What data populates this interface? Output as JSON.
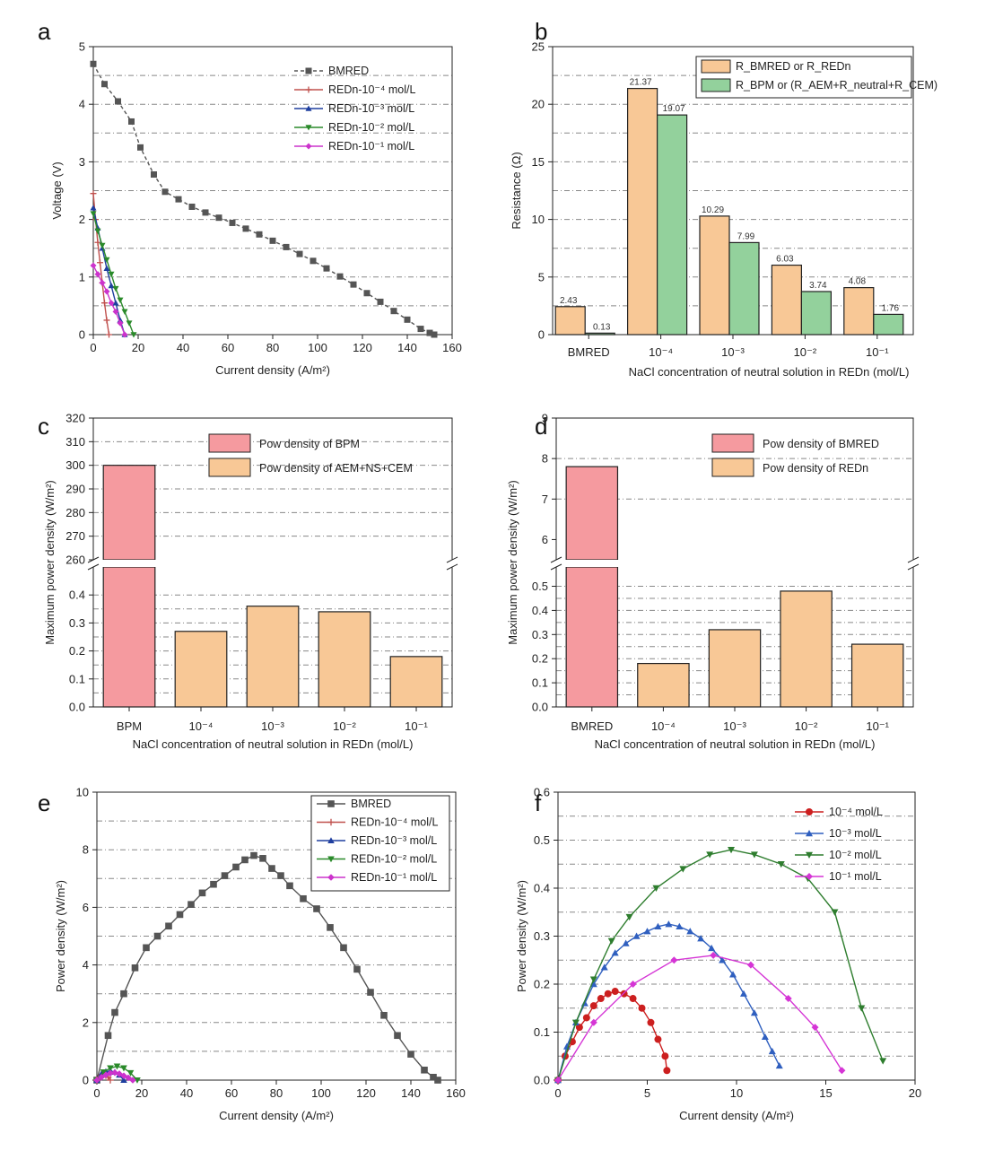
{
  "panels": {
    "a": {
      "label": "a"
    },
    "b": {
      "label": "b"
    },
    "c": {
      "label": "c"
    },
    "d": {
      "label": "d"
    },
    "e": {
      "label": "e"
    },
    "f": {
      "label": "f"
    }
  },
  "colors": {
    "bmred": "#555555",
    "redn4": "#c0504d",
    "redn3": "#1f3f9f",
    "redn2": "#2a8a2a",
    "redn1": "#cc33cc",
    "orange": "#f8c896",
    "green": "#93d19c",
    "pink": "#f59a9f",
    "red_text": "#d03c3c",
    "f_red": "#cc1f1f",
    "f_blue": "#2f5fbf",
    "f_green": "#2e7d2e",
    "f_magenta": "#d535d5"
  },
  "chart_data": [
    {
      "id": "a",
      "type": "line",
      "xlabel": "Current density (A/m²)",
      "ylabel": "Voltage (V)",
      "xlim": [
        0,
        160
      ],
      "ylim": [
        0,
        5
      ],
      "xticks": [
        "0",
        "20",
        "40",
        "60",
        "80",
        "100",
        "120",
        "140",
        "160"
      ],
      "yticks": [
        "0",
        "1",
        "2",
        "3",
        "4",
        "5"
      ],
      "series": [
        {
          "name": "BMRED",
          "color": "#555555",
          "marker": "square",
          "dashed": true,
          "x": [
            0,
            5,
            11,
            17,
            21,
            27,
            32,
            38,
            44,
            50,
            56,
            62,
            68,
            74,
            80,
            86,
            92,
            98,
            104,
            110,
            116,
            122,
            128,
            134,
            140,
            146,
            150,
            152
          ],
          "y": [
            4.7,
            4.35,
            4.05,
            3.7,
            3.25,
            2.78,
            2.48,
            2.35,
            2.22,
            2.12,
            2.03,
            1.94,
            1.84,
            1.74,
            1.63,
            1.52,
            1.4,
            1.28,
            1.15,
            1.01,
            0.87,
            0.72,
            0.57,
            0.41,
            0.26,
            0.1,
            0.03,
            0.0
          ]
        },
        {
          "name": "REDn-10⁻⁴ mol/L",
          "color": "#c0504d",
          "marker": "plus",
          "x": [
            0,
            1,
            2,
            3,
            4,
            5,
            6,
            7
          ],
          "y": [
            2.45,
            2.0,
            1.6,
            1.25,
            0.9,
            0.55,
            0.25,
            0.0
          ]
        },
        {
          "name": "REDn-10⁻³ mol/L",
          "color": "#1f3f9f",
          "marker": "triangle",
          "x": [
            0,
            2,
            4,
            6,
            8,
            10,
            12,
            14
          ],
          "y": [
            2.2,
            1.85,
            1.5,
            1.15,
            0.85,
            0.55,
            0.25,
            0.0
          ]
        },
        {
          "name": "REDn-10⁻² mol/L",
          "color": "#2a8a2a",
          "marker": "tridown",
          "x": [
            0,
            2,
            4,
            6,
            8,
            10,
            12,
            14,
            16,
            18
          ],
          "y": [
            2.1,
            1.8,
            1.55,
            1.3,
            1.05,
            0.8,
            0.6,
            0.4,
            0.2,
            0.0
          ]
        },
        {
          "name": "REDn-10⁻¹ mol/L",
          "color": "#cc33cc",
          "marker": "diamond",
          "x": [
            0,
            2,
            4,
            6,
            8,
            10,
            12,
            14
          ],
          "y": [
            1.2,
            1.05,
            0.9,
            0.75,
            0.55,
            0.4,
            0.2,
            0.0
          ]
        }
      ]
    },
    {
      "id": "b",
      "type": "bar",
      "xlabel": "NaCl concentration of neutral solution in REDn (mol/L)",
      "ylabel": "Resistance (Ω)",
      "ylim": [
        0,
        25
      ],
      "yticks": [
        "0",
        "5",
        "10",
        "15",
        "20",
        "25"
      ],
      "categories": [
        "BMRED",
        "10⁻⁴",
        "10⁻³",
        "10⁻²",
        "10⁻¹"
      ],
      "series": [
        {
          "name": "R_BMRED or R_REDn",
          "color": "#f8c896",
          "values": [
            2.43,
            21.37,
            10.29,
            6.03,
            4.08
          ],
          "labels": [
            "2.43",
            "21.37",
            "10.29",
            "6.03",
            "4.08"
          ]
        },
        {
          "name": "R_BPM or (R_AEM+R_neutral+R_CEM)",
          "color": "#93d19c",
          "values": [
            0.13,
            19.07,
            7.99,
            3.74,
            1.76
          ],
          "labels": [
            "0.13",
            "19.07",
            "7.99",
            "3.74",
            "1.76"
          ]
        }
      ],
      "legend": [
        {
          "main": "R",
          "sub": "BMRED",
          "mid": " or R",
          "sub2": "REDn",
          "tail": ""
        },
        {
          "main": "R",
          "sub": "BPM",
          "mid": " or (R",
          "sub2": "AEM",
          "tail": "+R"
        }
      ]
    },
    {
      "id": "c",
      "type": "bar",
      "xlabel": "NaCl concentration of neutral solution in REDn (mol/L)",
      "ylabel": "Maximum power density (W/m²)",
      "upper_ylim": [
        260,
        320
      ],
      "upper_yticks": [
        "260",
        "270",
        "280",
        "290",
        "300",
        "310",
        "320"
      ],
      "lower_ylim": [
        0,
        0.5
      ],
      "lower_yticks": [
        "0.0",
        "0.1",
        "0.2",
        "0.3",
        "0.4"
      ],
      "categories": [
        "BPM",
        "10⁻⁴",
        "10⁻³",
        "10⁻²",
        "10⁻¹"
      ],
      "values": [
        300,
        0.27,
        0.36,
        0.34,
        0.18
      ],
      "series_names": [
        "Pow density of BPM",
        "Pow density of AEM+NS+CEM"
      ]
    },
    {
      "id": "d",
      "type": "bar",
      "xlabel": "NaCl concentration of neutral solution in REDn (mol/L)",
      "ylabel": "Maximum power density (W/m²)",
      "upper_ylim": [
        5.5,
        9
      ],
      "upper_yticks": [
        "6",
        "7",
        "8",
        "9"
      ],
      "lower_ylim": [
        0,
        0.58
      ],
      "lower_yticks": [
        "0.0",
        "0.1",
        "0.2",
        "0.3",
        "0.4",
        "0.5"
      ],
      "categories": [
        "BMRED",
        "10⁻⁴",
        "10⁻³",
        "10⁻²",
        "10⁻¹"
      ],
      "values": [
        7.8,
        0.18,
        0.32,
        0.48,
        0.26
      ],
      "series_names": [
        "Pow density of BMRED",
        "Pow density of REDn"
      ]
    },
    {
      "id": "e",
      "type": "line",
      "xlabel": "Current density (A/m²)",
      "ylabel": "Power density (W/m²)",
      "xlim": [
        0,
        160
      ],
      "ylim": [
        0,
        10
      ],
      "xticks": [
        "0",
        "20",
        "40",
        "60",
        "80",
        "100",
        "120",
        "140",
        "160"
      ],
      "yticks": [
        "0",
        "2",
        "4",
        "6",
        "8",
        "10"
      ],
      "series": [
        {
          "name": "BMRED",
          "color": "#555555",
          "marker": "square",
          "x": [
            0,
            5,
            8,
            12,
            17,
            22,
            27,
            32,
            37,
            42,
            47,
            52,
            57,
            62,
            66,
            70,
            74,
            78,
            82,
            86,
            92,
            98,
            104,
            110,
            116,
            122,
            128,
            134,
            140,
            146,
            150,
            152
          ],
          "y": [
            0,
            1.55,
            2.35,
            3.0,
            3.9,
            4.6,
            5.0,
            5.35,
            5.75,
            6.1,
            6.5,
            6.8,
            7.1,
            7.4,
            7.65,
            7.8,
            7.7,
            7.35,
            7.1,
            6.75,
            6.3,
            5.95,
            5.3,
            4.6,
            3.85,
            3.05,
            2.25,
            1.55,
            0.9,
            0.35,
            0.1,
            0.0
          ]
        },
        {
          "name": "REDn-10⁻⁴ mol/L",
          "color": "#c0504d",
          "marker": "plus",
          "x": [
            0,
            1,
            2,
            3,
            4,
            5,
            6
          ],
          "y": [
            0,
            0.1,
            0.16,
            0.18,
            0.16,
            0.1,
            0.0
          ]
        },
        {
          "name": "REDn-10⁻³ mol/L",
          "color": "#1f3f9f",
          "marker": "triangle",
          "x": [
            0,
            2,
            4,
            6,
            8,
            10,
            12
          ],
          "y": [
            0,
            0.22,
            0.3,
            0.32,
            0.28,
            0.18,
            0.0
          ]
        },
        {
          "name": "REDn-10⁻² mol/L",
          "color": "#2a8a2a",
          "marker": "tridown",
          "x": [
            0,
            3,
            6,
            9,
            12,
            15,
            18
          ],
          "y": [
            0,
            0.28,
            0.42,
            0.48,
            0.42,
            0.25,
            0.0
          ]
        },
        {
          "name": "REDn-10⁻¹ mol/L",
          "color": "#cc33cc",
          "marker": "diamond",
          "x": [
            0,
            2,
            4,
            6,
            8,
            10,
            12,
            14,
            16
          ],
          "y": [
            0,
            0.1,
            0.18,
            0.24,
            0.26,
            0.22,
            0.15,
            0.08,
            0.0
          ]
        }
      ]
    },
    {
      "id": "f",
      "type": "line",
      "xlabel": "Current density (A/m²)",
      "ylabel": "Power density (W/m²)",
      "xlim": [
        0,
        20
      ],
      "ylim": [
        0,
        0.6
      ],
      "xticks": [
        "0",
        "5",
        "10",
        "15",
        "20"
      ],
      "yticks": [
        "0.0",
        "0.1",
        "0.2",
        "0.3",
        "0.4",
        "0.5",
        "0.6"
      ],
      "series": [
        {
          "name": "10⁻⁴ mol/L",
          "color": "#cc1f1f",
          "marker": "circle",
          "x": [
            0,
            0.4,
            0.8,
            1.2,
            1.6,
            2.0,
            2.4,
            2.8,
            3.2,
            3.7,
            4.2,
            4.7,
            5.2,
            5.6,
            6.0,
            6.1
          ],
          "y": [
            0,
            0.05,
            0.08,
            0.11,
            0.13,
            0.155,
            0.17,
            0.18,
            0.185,
            0.18,
            0.17,
            0.15,
            0.12,
            0.085,
            0.05,
            0.02
          ]
        },
        {
          "name": "10⁻³ mol/L",
          "color": "#2f5fbf",
          "marker": "triangle",
          "x": [
            0,
            0.5,
            1.0,
            1.5,
            2.0,
            2.6,
            3.2,
            3.8,
            4.4,
            5.0,
            5.6,
            6.2,
            6.8,
            7.4,
            8.0,
            8.6,
            9.2,
            9.8,
            10.4,
            11.0,
            11.6,
            12.0,
            12.4
          ],
          "y": [
            0,
            0.07,
            0.12,
            0.16,
            0.2,
            0.235,
            0.265,
            0.285,
            0.3,
            0.31,
            0.32,
            0.325,
            0.32,
            0.31,
            0.295,
            0.275,
            0.25,
            0.22,
            0.18,
            0.14,
            0.09,
            0.06,
            0.03
          ]
        },
        {
          "name": "10⁻² mol/L",
          "color": "#2e7d2e",
          "marker": "tridown",
          "x": [
            0,
            1.0,
            2.0,
            3.0,
            4.0,
            5.5,
            7.0,
            8.5,
            9.7,
            11.0,
            12.5,
            14.0,
            15.5,
            17.0,
            18.2
          ],
          "y": [
            0,
            0.12,
            0.21,
            0.29,
            0.34,
            0.4,
            0.44,
            0.47,
            0.48,
            0.47,
            0.45,
            0.42,
            0.35,
            0.15,
            0.04
          ]
        },
        {
          "name": "10⁻¹ mol/L",
          "color": "#d535d5",
          "marker": "diamond",
          "x": [
            0,
            2.0,
            4.2,
            6.5,
            8.7,
            10.8,
            12.9,
            14.4,
            15.9
          ],
          "y": [
            0,
            0.12,
            0.2,
            0.25,
            0.26,
            0.24,
            0.17,
            0.11,
            0.02
          ]
        }
      ]
    }
  ]
}
